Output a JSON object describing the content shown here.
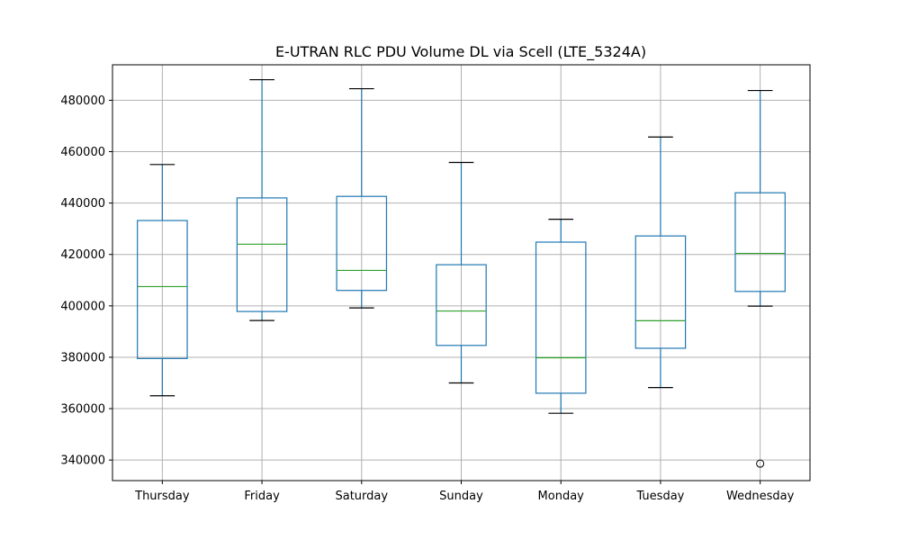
{
  "chart_data": {
    "type": "box",
    "title": "E-UTRAN RLC PDU Volume DL via Scell (LTE_5324A)",
    "xlabel": "",
    "ylabel": "",
    "ylim": [
      332000,
      493800
    ],
    "y_ticks": [
      340000,
      360000,
      380000,
      400000,
      420000,
      440000,
      460000,
      480000
    ],
    "y_tick_labels": [
      "340000",
      "360000",
      "380000",
      "400000",
      "420000",
      "440000",
      "460000",
      "480000"
    ],
    "grid": true,
    "categories": [
      "Thursday",
      "Friday",
      "Saturday",
      "Sunday",
      "Monday",
      "Tuesday",
      "Wednesday"
    ],
    "boxes": [
      {
        "category": "Thursday",
        "whisker_low": 365000,
        "q1": 379500,
        "median": 407500,
        "q3": 433200,
        "whisker_high": 455000,
        "outliers": []
      },
      {
        "category": "Friday",
        "whisker_low": 394300,
        "q1": 397800,
        "median": 424000,
        "q3": 442000,
        "whisker_high": 488000,
        "outliers": []
      },
      {
        "category": "Saturday",
        "whisker_low": 399200,
        "q1": 406000,
        "median": 413800,
        "q3": 442600,
        "whisker_high": 484500,
        "outliers": []
      },
      {
        "category": "Sunday",
        "whisker_low": 370000,
        "q1": 384600,
        "median": 398000,
        "q3": 416000,
        "whisker_high": 455800,
        "outliers": []
      },
      {
        "category": "Monday",
        "whisker_low": 358200,
        "q1": 366000,
        "median": 379800,
        "q3": 424800,
        "whisker_high": 433700,
        "outliers": []
      },
      {
        "category": "Tuesday",
        "whisker_low": 368200,
        "q1": 383500,
        "median": 394200,
        "q3": 427200,
        "whisker_high": 465700,
        "outliers": []
      },
      {
        "category": "Wednesday",
        "whisker_low": 399900,
        "q1": 405600,
        "median": 420400,
        "q3": 444000,
        "whisker_high": 483800,
        "outliers": [
          338600
        ]
      }
    ],
    "colors": {
      "box": "#1f77b4",
      "median": "#2ca02c",
      "cap": "#000000",
      "grid": "#b0b0b0",
      "axis": "#000000",
      "outlier": "#000000"
    }
  }
}
